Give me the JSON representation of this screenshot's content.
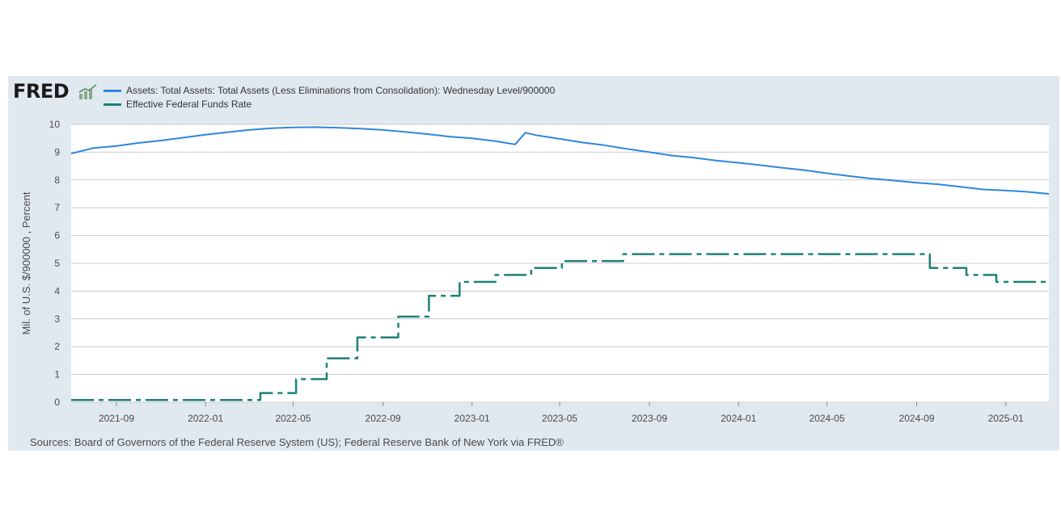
{
  "header": {
    "logo_text": "FRED",
    "logo_mark": "fred-chart-mark-icon"
  },
  "footer": {
    "source": "Sources: Board of Governors of the Federal Reserve System (US); Federal Reserve Bank of New York via FRED®"
  },
  "colors": {
    "panel_bg": "#e1e9f0",
    "plot_bg": "#ffffff",
    "assets": "#2f86dd",
    "fedfunds": "#1e8078",
    "grid": "#cccccc"
  },
  "chart_data": {
    "type": "line",
    "title": "",
    "xlabel": "",
    "ylabel": "Mil. of U.S. $/900000 , Percent",
    "ylim": [
      0,
      10
    ],
    "yticks": [
      0,
      1,
      2,
      3,
      4,
      5,
      6,
      7,
      8,
      9,
      10
    ],
    "xlim": [
      "2021-07-01",
      "2025-03-01"
    ],
    "xticks": [
      "2021-09",
      "2022-01",
      "2022-05",
      "2022-09",
      "2023-01",
      "2023-05",
      "2023-09",
      "2024-01",
      "2024-05",
      "2024-09",
      "2025-01"
    ],
    "grid": true,
    "legend_position": "top-left",
    "series": [
      {
        "name": "Assets: Total Assets: Total Assets (Less Eliminations from Consolidation): Wednesday Level/900000",
        "style": "solid",
        "points": [
          [
            "2021-07-01",
            8.95
          ],
          [
            "2021-08-01",
            9.15
          ],
          [
            "2021-09-01",
            9.22
          ],
          [
            "2021-10-01",
            9.33
          ],
          [
            "2021-11-01",
            9.42
          ],
          [
            "2021-12-01",
            9.52
          ],
          [
            "2022-01-01",
            9.63
          ],
          [
            "2022-02-01",
            9.72
          ],
          [
            "2022-03-01",
            9.8
          ],
          [
            "2022-04-01",
            9.86
          ],
          [
            "2022-05-01",
            9.89
          ],
          [
            "2022-06-01",
            9.9
          ],
          [
            "2022-07-01",
            9.88
          ],
          [
            "2022-08-01",
            9.85
          ],
          [
            "2022-09-01",
            9.8
          ],
          [
            "2022-10-01",
            9.73
          ],
          [
            "2022-11-01",
            9.65
          ],
          [
            "2022-12-01",
            9.56
          ],
          [
            "2023-01-01",
            9.5
          ],
          [
            "2023-02-01",
            9.4
          ],
          [
            "2023-03-01",
            9.28
          ],
          [
            "2023-03-15",
            9.7
          ],
          [
            "2023-04-01",
            9.6
          ],
          [
            "2023-05-01",
            9.48
          ],
          [
            "2023-06-01",
            9.35
          ],
          [
            "2023-07-01",
            9.25
          ],
          [
            "2023-08-01",
            9.12
          ],
          [
            "2023-09-01",
            9.0
          ],
          [
            "2023-10-01",
            8.88
          ],
          [
            "2023-11-01",
            8.8
          ],
          [
            "2023-12-01",
            8.7
          ],
          [
            "2024-01-01",
            8.62
          ],
          [
            "2024-02-01",
            8.53
          ],
          [
            "2024-03-01",
            8.44
          ],
          [
            "2024-04-01",
            8.35
          ],
          [
            "2024-05-01",
            8.24
          ],
          [
            "2024-06-01",
            8.14
          ],
          [
            "2024-07-01",
            8.05
          ],
          [
            "2024-08-01",
            7.98
          ],
          [
            "2024-09-01",
            7.9
          ],
          [
            "2024-10-01",
            7.84
          ],
          [
            "2024-11-01",
            7.75
          ],
          [
            "2024-12-01",
            7.66
          ],
          [
            "2025-01-01",
            7.62
          ],
          [
            "2025-02-01",
            7.57
          ],
          [
            "2025-03-01",
            7.5
          ]
        ]
      },
      {
        "name": "Effective Federal Funds Rate",
        "style": "dashed",
        "points": [
          [
            "2021-07-01",
            0.08
          ],
          [
            "2022-03-17",
            0.08
          ],
          [
            "2022-03-17",
            0.33
          ],
          [
            "2022-05-05",
            0.33
          ],
          [
            "2022-05-05",
            0.83
          ],
          [
            "2022-06-16",
            0.83
          ],
          [
            "2022-06-16",
            1.58
          ],
          [
            "2022-07-28",
            1.58
          ],
          [
            "2022-07-28",
            2.33
          ],
          [
            "2022-09-22",
            2.33
          ],
          [
            "2022-09-22",
            3.08
          ],
          [
            "2022-11-03",
            3.08
          ],
          [
            "2022-11-03",
            3.83
          ],
          [
            "2022-12-15",
            3.83
          ],
          [
            "2022-12-15",
            4.33
          ],
          [
            "2023-02-02",
            4.33
          ],
          [
            "2023-02-02",
            4.58
          ],
          [
            "2023-03-23",
            4.58
          ],
          [
            "2023-03-23",
            4.83
          ],
          [
            "2023-05-04",
            4.83
          ],
          [
            "2023-05-04",
            5.08
          ],
          [
            "2023-07-27",
            5.08
          ],
          [
            "2023-07-27",
            5.33
          ],
          [
            "2024-09-19",
            5.33
          ],
          [
            "2024-09-19",
            4.83
          ],
          [
            "2024-11-08",
            4.83
          ],
          [
            "2024-11-08",
            4.58
          ],
          [
            "2024-12-19",
            4.58
          ],
          [
            "2024-12-19",
            4.33
          ],
          [
            "2025-03-01",
            4.33
          ]
        ]
      }
    ]
  }
}
